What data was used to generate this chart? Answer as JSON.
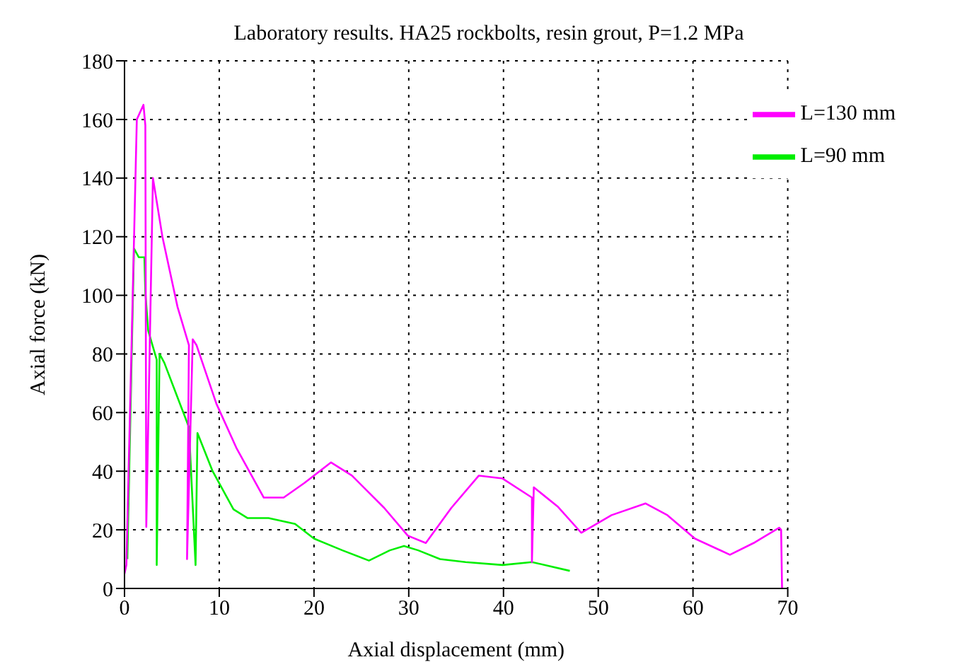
{
  "chart_data": {
    "type": "line",
    "title": "Laboratory results. HA25 rockbolts, resin grout, P=1.2 MPa",
    "xlabel": "Axial displacement (mm)",
    "ylabel": "Axial force (kN)",
    "xlim": [
      0,
      70
    ],
    "ylim": [
      0,
      180
    ],
    "xticks": [
      0,
      10,
      20,
      30,
      40,
      50,
      60,
      70
    ],
    "yticks": [
      0,
      20,
      40,
      60,
      80,
      100,
      120,
      140,
      160,
      180
    ],
    "grid": true,
    "legend": "top right",
    "marker": "none",
    "line_style": "solid",
    "series": [
      {
        "name": "L=90 mm",
        "color": "#00ee00",
        "x": [
          0.3,
          1.0,
          1.5,
          2.1,
          2.2,
          2.5,
          3.4,
          3.4,
          3.7,
          4.2,
          5.5,
          6.8,
          7.5,
          7.7,
          9.3,
          11.5,
          13,
          15.2,
          18,
          20,
          23,
          25.8,
          28,
          29.5,
          31,
          33.3,
          36,
          39.9,
          43,
          47
        ],
        "values": [
          10,
          116,
          113,
          113,
          101,
          88,
          78,
          8,
          80,
          77,
          66,
          55,
          8,
          53,
          40,
          27,
          24,
          24,
          22,
          17,
          13,
          9.5,
          13,
          14.5,
          13,
          10,
          9,
          8,
          9,
          6
        ]
      },
      {
        "name": "L=130 mm",
        "color": "#ff00ff",
        "x": [
          0,
          0.2,
          1.3,
          2.0,
          2.2,
          2.3,
          3.0,
          4.0,
          5.6,
          6.8,
          6.6,
          7.2,
          7.6,
          9.7,
          11.8,
          14.7,
          16.8,
          19,
          21.8,
          24,
          27.4,
          29.9,
          31.8,
          34.5,
          37.4,
          39.9,
          43,
          43,
          43.2,
          45.7,
          48.2,
          51.4,
          55,
          57.3,
          60.2,
          63.9,
          66.4,
          69.1,
          69.3,
          69.4
        ],
        "values": [
          5,
          8,
          160,
          165,
          158,
          21,
          140,
          120,
          96,
          83,
          10,
          85,
          83,
          63,
          48,
          31,
          31,
          36,
          43,
          38.5,
          27.5,
          18,
          15.5,
          27.5,
          38.5,
          37.5,
          31,
          9,
          34.5,
          28,
          19,
          25,
          29,
          25,
          17,
          11.5,
          15.5,
          20.7,
          20,
          0
        ]
      }
    ]
  }
}
